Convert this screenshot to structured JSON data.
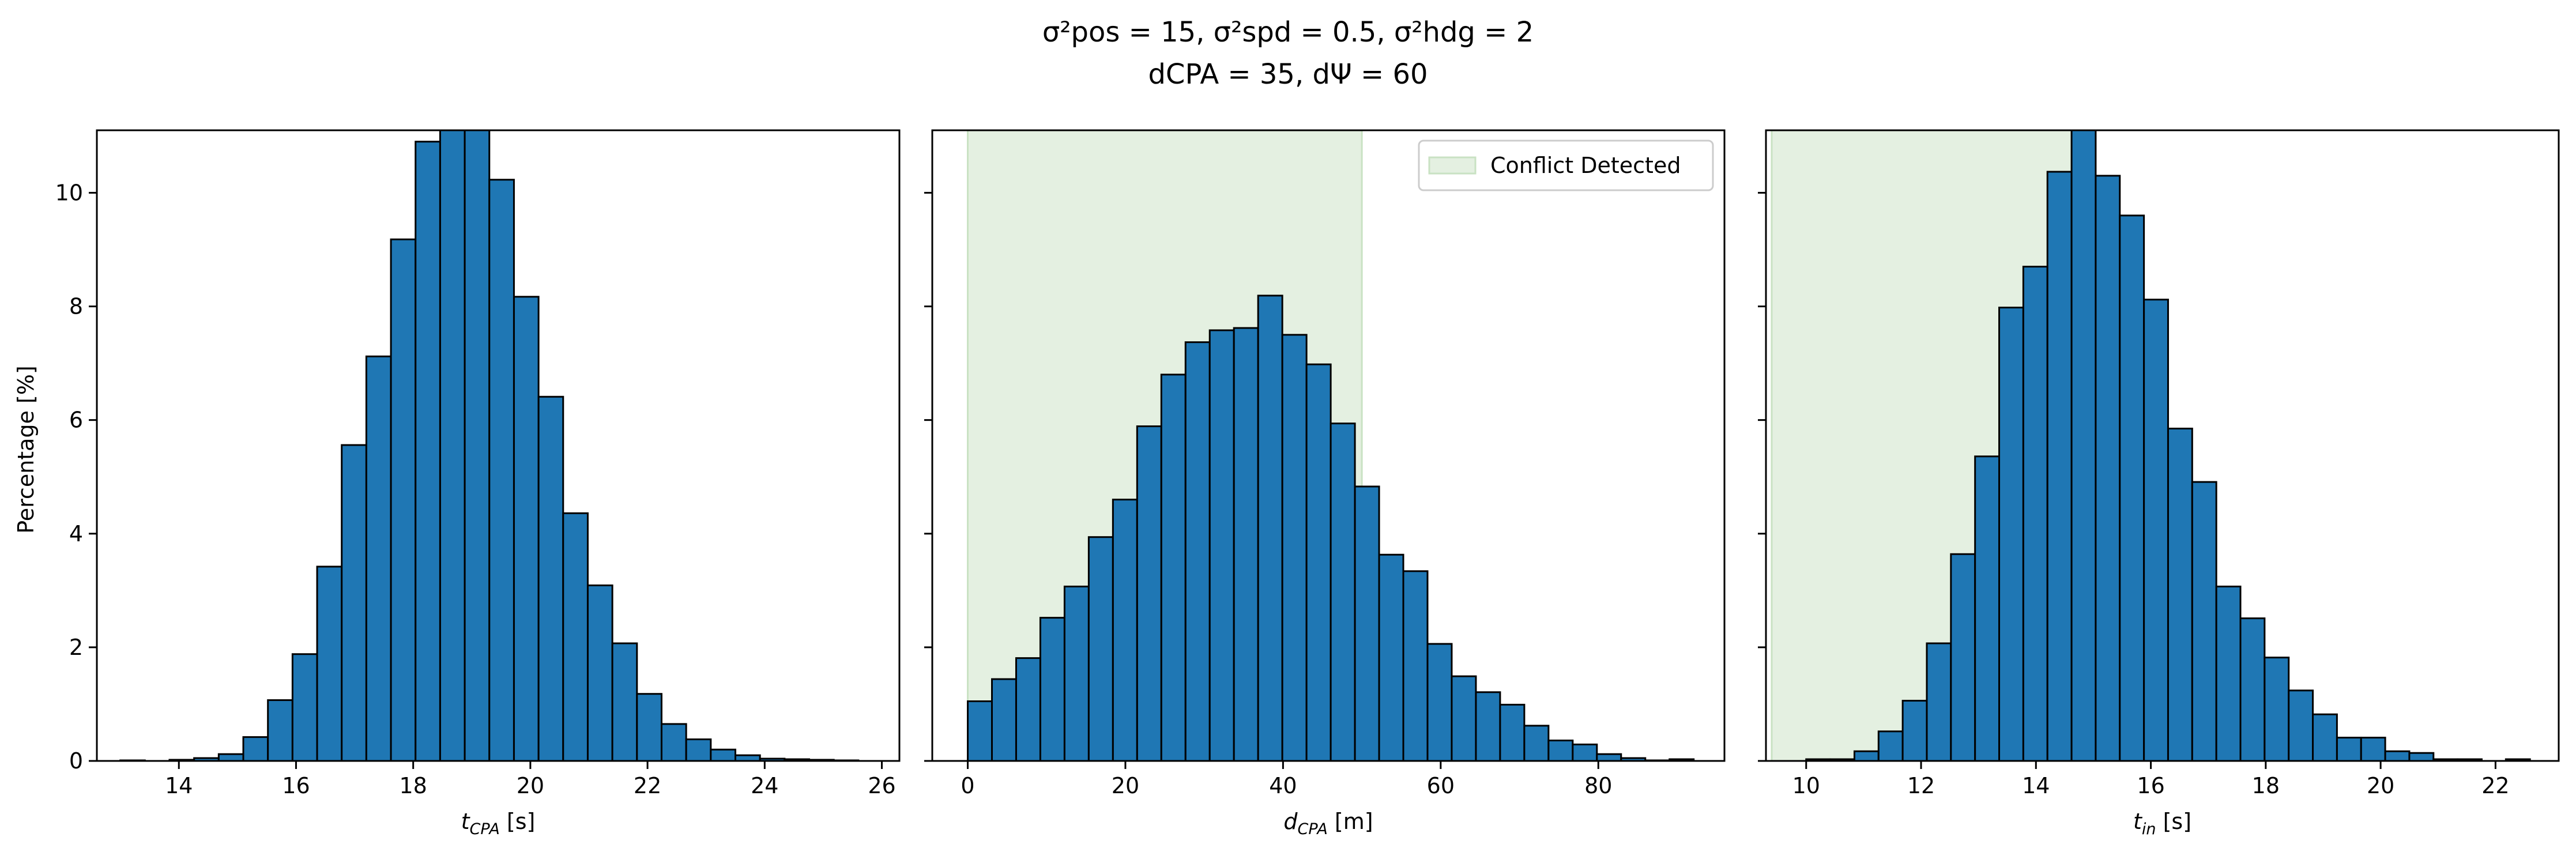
{
  "title_line1": "σ²pos = 15, σ²spd = 0.5, σ²hdg = 2",
  "title_line2": "dCPA = 35, dΨ = 60",
  "ylabel": "Percentage [%]",
  "colors": {
    "bar": "#1f77b4",
    "edge": "#000000",
    "shade": "#e4f0e1",
    "shade_edge": "#c9e2c3"
  },
  "legend_label": "Conflict Detected",
  "chart_data": [
    {
      "type": "bar",
      "xlabel": "t_CPA [s]",
      "xlim": [
        12.6,
        26.3
      ],
      "ylim": [
        0,
        11.1
      ],
      "xticks": [
        14,
        16,
        18,
        20,
        22,
        24,
        26
      ],
      "yticks": [
        0,
        2,
        4,
        6,
        8,
        10
      ],
      "bin_start": 13.0,
      "bin_width": 0.42,
      "values": [
        0.01,
        0.0,
        0.02,
        0.05,
        0.12,
        0.42,
        1.07,
        1.88,
        3.42,
        5.56,
        7.12,
        9.18,
        10.9,
        11.2,
        11.15,
        10.23,
        8.17,
        6.41,
        4.36,
        3.09,
        2.07,
        1.18,
        0.65,
        0.38,
        0.2,
        0.1,
        0.04,
        0.03,
        0.02,
        0.01
      ],
      "shade_range": null
    },
    {
      "type": "bar",
      "xlabel": "d_CPA [m]",
      "xlim": [
        -4.5,
        96.0
      ],
      "ylim": [
        0,
        11.1
      ],
      "xticks": [
        0,
        20,
        40,
        60,
        80
      ],
      "yticks": [
        0,
        2,
        4,
        6,
        8,
        10
      ],
      "bin_start": 0.0,
      "bin_width": 3.07,
      "values": [
        1.05,
        1.44,
        1.81,
        2.52,
        3.07,
        3.94,
        4.6,
        5.89,
        6.8,
        7.37,
        7.58,
        7.62,
        8.19,
        7.5,
        6.98,
        5.94,
        4.83,
        3.63,
        3.34,
        2.06,
        1.49,
        1.21,
        0.99,
        0.62,
        0.36,
        0.29,
        0.12,
        0.05,
        0.01,
        0.03
      ],
      "shade_range": [
        0,
        50
      ],
      "legend": "Conflict Detected"
    },
    {
      "type": "bar",
      "xlabel": "t_in [s]",
      "xlim": [
        9.3,
        23.1
      ],
      "ylim": [
        0,
        11.1
      ],
      "xticks": [
        10,
        12,
        14,
        16,
        18,
        20,
        22
      ],
      "yticks": [
        0,
        2,
        4,
        6,
        8,
        10
      ],
      "bin_start": 10.0,
      "bin_width": 0.42,
      "values": [
        0.03,
        0.03,
        0.17,
        0.52,
        1.06,
        2.07,
        3.64,
        5.36,
        7.98,
        8.7,
        10.37,
        11.2,
        10.3,
        9.6,
        8.12,
        5.85,
        4.91,
        3.07,
        2.51,
        1.82,
        1.24,
        0.82,
        0.41,
        0.41,
        0.17,
        0.14,
        0.03,
        0.03,
        0.0,
        0.03
      ],
      "shade_range": [
        9.4,
        15.0
      ]
    }
  ]
}
